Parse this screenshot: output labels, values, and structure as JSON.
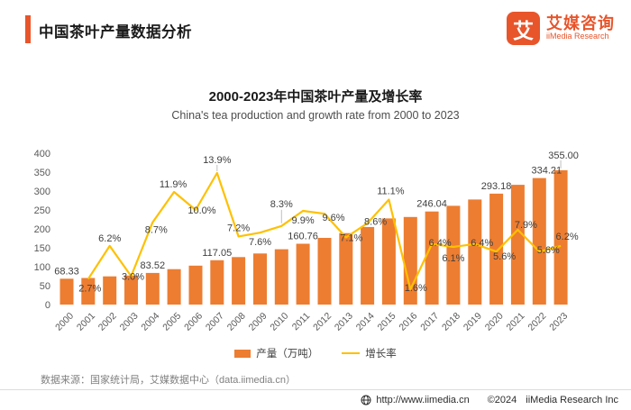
{
  "colors": {
    "brand": "#E8552B",
    "bar": "#ED7D31",
    "line": "#FFC000"
  },
  "header": {
    "title": "中国茶叶产量数据分析",
    "logo": {
      "mark": "艾",
      "name_cn": "艾媒咨询",
      "name_en": "iiMedia Research"
    }
  },
  "chart": {
    "title": "2000-2023年中国茶叶产量及增长率",
    "subtitle": "China's tea production and growth rate from 2000 to 2023"
  },
  "chart_data": {
    "type": "bar+line",
    "categories": [
      "2000",
      "2001",
      "2002",
      "2003",
      "2004",
      "2005",
      "2006",
      "2007",
      "2008",
      "2009",
      "2010",
      "2011",
      "2012",
      "2013",
      "2014",
      "2015",
      "2016",
      "2017",
      "2018",
      "2019",
      "2020",
      "2021",
      "2022",
      "2023"
    ],
    "series": [
      {
        "name": "产量（万吨）",
        "type": "bar",
        "color": "#ED7D31",
        "axis": "left",
        "values": [
          68.33,
          70.17,
          74.53,
          76.74,
          83.52,
          93.49,
          102.8,
          117.05,
          125.53,
          135.05,
          146.25,
          160.76,
          176.15,
          188.72,
          204.93,
          227.66,
          231.33,
          246.04,
          261.04,
          277.72,
          293.18,
          316.4,
          334.21,
          355.0
        ],
        "value_labels": {
          "0": "68.33",
          "4": "83.52",
          "7": "117.05",
          "11": "160.76",
          "17": "246.04",
          "20": "293.18",
          "22": "334.21",
          "23": "355.00"
        }
      },
      {
        "name": "增长率",
        "type": "line",
        "color": "#FFC000",
        "axis": "right",
        "values": [
          null,
          2.7,
          6.2,
          3.0,
          8.7,
          11.9,
          10.0,
          13.9,
          7.2,
          7.6,
          8.3,
          9.9,
          9.6,
          7.1,
          8.6,
          11.1,
          1.6,
          6.4,
          6.1,
          6.4,
          5.6,
          7.9,
          5.6,
          6.2
        ]
      }
    ],
    "y_axis": {
      "min": 0,
      "max": 400,
      "step": 50,
      "ticks": [
        "0",
        "50",
        "100",
        "150",
        "200",
        "250",
        "300",
        "350",
        "400"
      ]
    },
    "y2_axis": {
      "min": 0,
      "max": 16,
      "visible": false
    },
    "grid": false,
    "legend_position": "bottom"
  },
  "legend": {
    "production": "产量（万吨）",
    "growth": "增长率"
  },
  "source": "数据来源：国家统计局，艾媒数据中心（data.iimedia.cn）",
  "footer": {
    "url": "http://www.iimedia.cn",
    "year": "©2024",
    "company": "iiMedia Research Inc"
  }
}
